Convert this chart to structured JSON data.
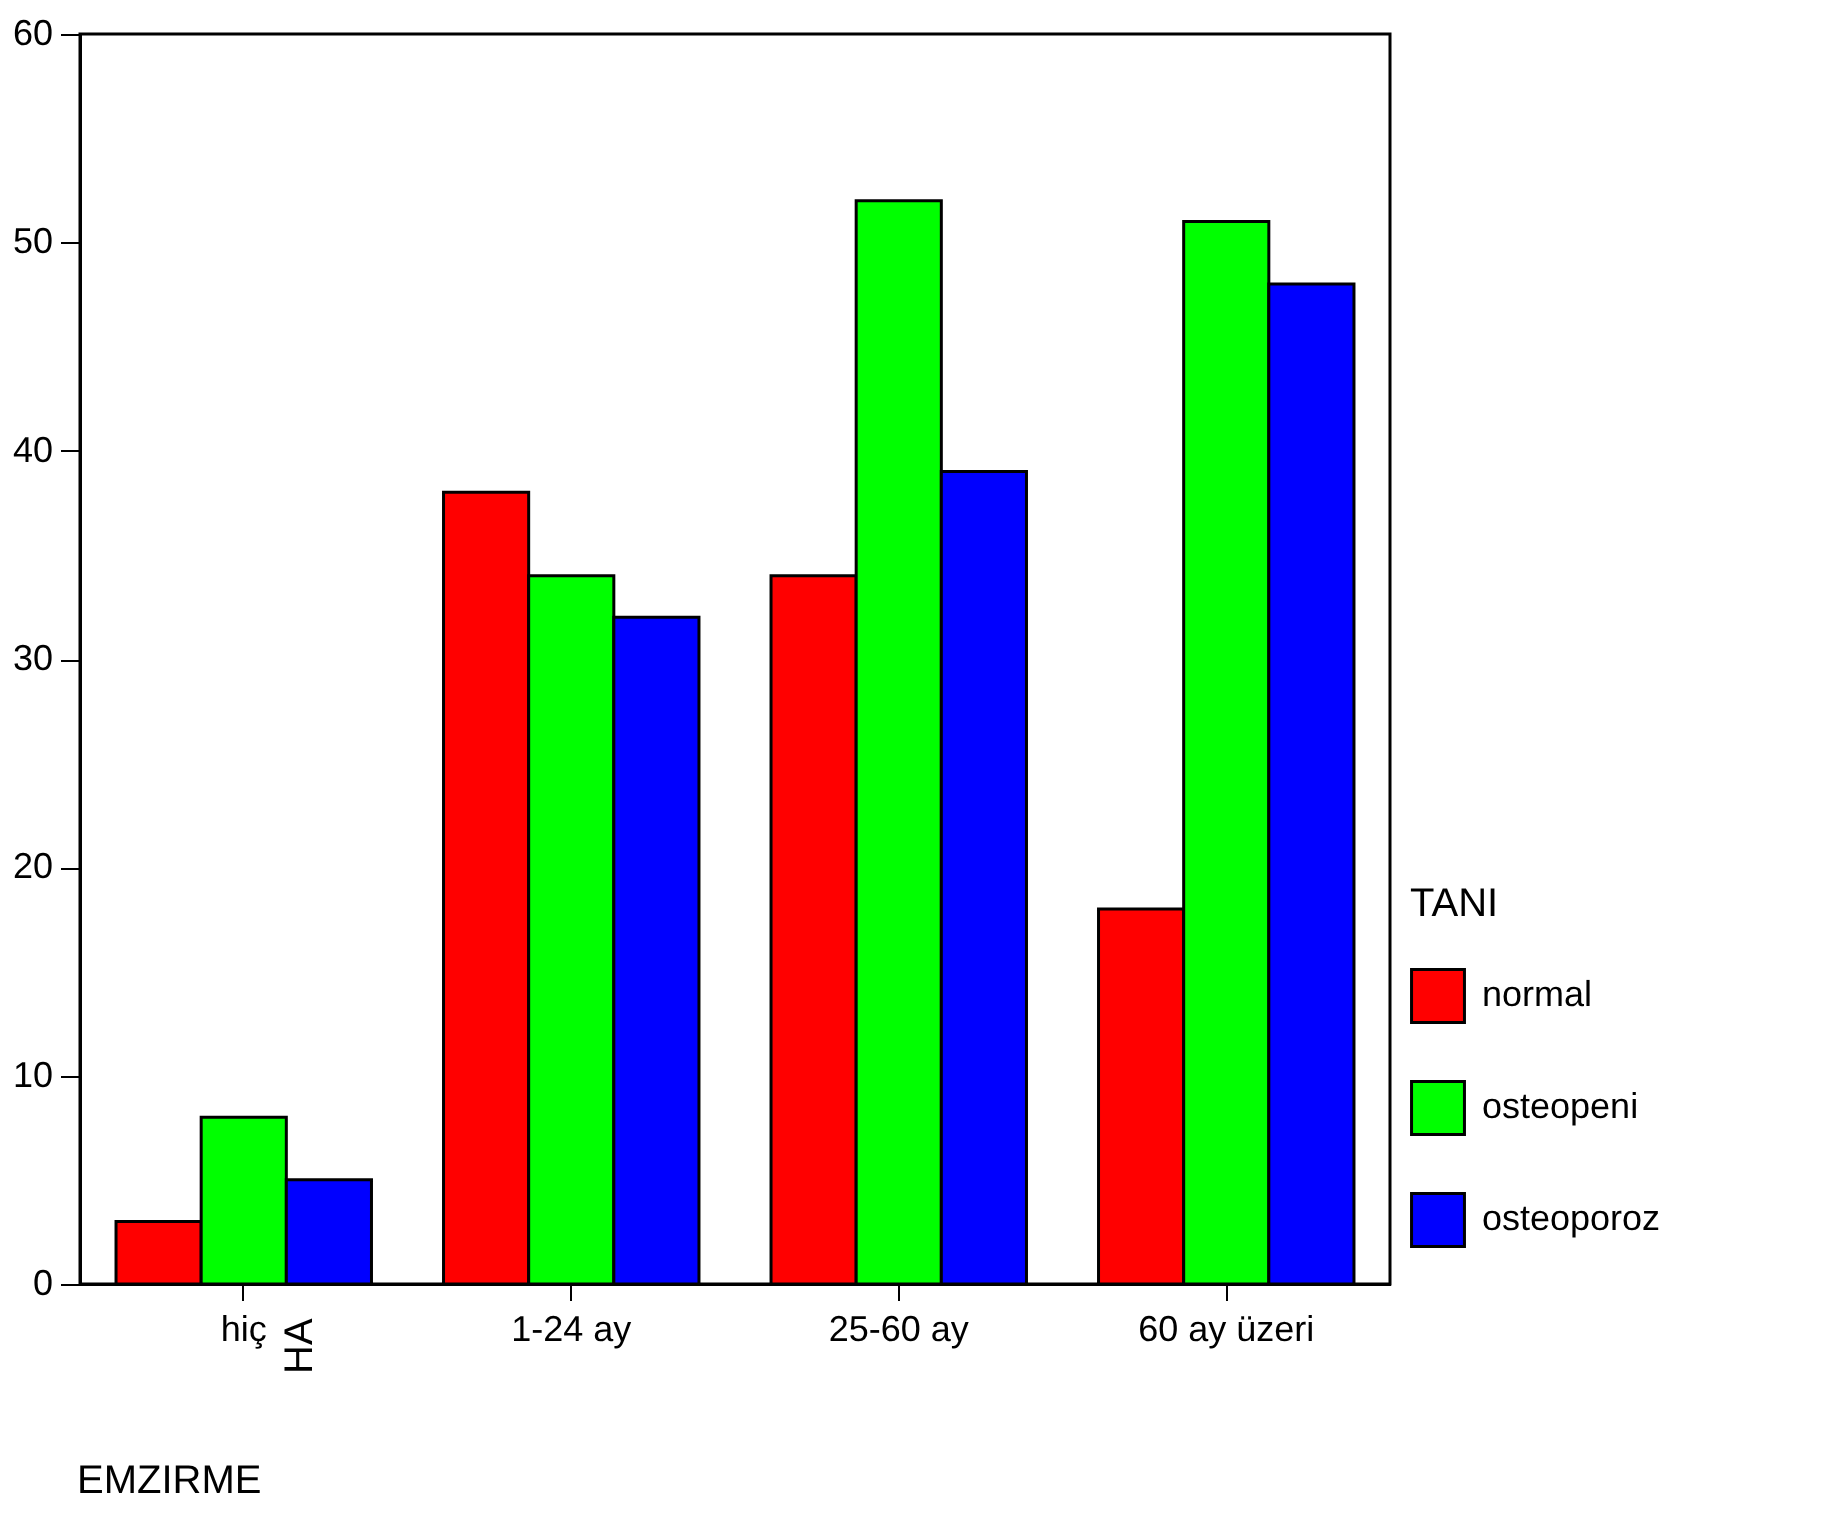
{
  "chart_data": {
    "type": "bar",
    "categories": [
      "hiç",
      "1-24 ay",
      "25-60 ay",
      "60 ay üzeri"
    ],
    "series": [
      {
        "name": "normal",
        "color": "#ff0000",
        "values": [
          3,
          38,
          34,
          18
        ]
      },
      {
        "name": "osteopeni",
        "color": "#00ff00",
        "values": [
          8,
          34,
          52,
          51
        ]
      },
      {
        "name": "osteoporoz",
        "color": "#0000ff",
        "values": [
          5,
          32,
          39,
          48
        ]
      }
    ],
    "xlabel": "EMZIRME",
    "legend_title": "TANI",
    "annotations": [
      "HA"
    ],
    "ylim": [
      0,
      60
    ],
    "yticks": [
      0,
      10,
      20,
      30,
      40,
      50,
      60
    ],
    "grid": false,
    "legend": "right"
  }
}
